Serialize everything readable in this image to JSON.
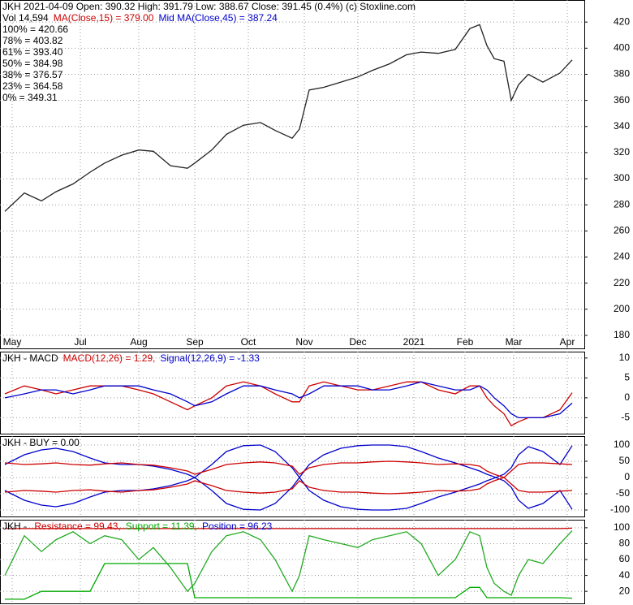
{
  "chart_data": [
    {
      "type": "line",
      "title": "JKH  2021-04-09 Open: 390.32 High: 391.79 Low: 388.67 Close: 391.45 (0.4%) (c) Stoxline.com",
      "annotations": [
        {
          "text": "Vol 14,594",
          "color": "#000000"
        },
        {
          "text": "MA(Close,15) = 379.00",
          "color": "#cc0000"
        },
        {
          "text": "Mid MA(Close,45) = 387.24",
          "color": "#0000cc"
        },
        {
          "text": "100% = 420.66",
          "color": "#cc0000"
        },
        {
          "text": "78% = 403.82",
          "color": "#cc00cc"
        },
        {
          "text": "61% = 393.40",
          "color": "#888888"
        },
        {
          "text": "50% = 384.98",
          "color": "#0000cc"
        },
        {
          "text": "38% = 376.57",
          "color": "#888888"
        },
        {
          "text": "23% = 364.58",
          "color": "#cc00cc"
        },
        {
          "text": "0% = 349.31",
          "color": "#008800"
        }
      ],
      "x": [
        2,
        10,
        17,
        23,
        30,
        37,
        43,
        50,
        57,
        63,
        70,
        77,
        80,
        87,
        93,
        100,
        107,
        113,
        120,
        123,
        127,
        133,
        140,
        147,
        153,
        160,
        167,
        173,
        180,
        187,
        193,
        197,
        200,
        203,
        207,
        210,
        213,
        217,
        223,
        230,
        235
      ],
      "xlim": [
        0,
        240
      ],
      "xticks": [
        {
          "value": 5,
          "label": "May"
        },
        {
          "value": 33,
          "label": "Jul"
        },
        {
          "value": 57,
          "label": "Aug"
        },
        {
          "value": 80,
          "label": "Sep"
        },
        {
          "value": 102,
          "label": "Oct"
        },
        {
          "value": 125,
          "label": "Nov"
        },
        {
          "value": 147,
          "label": "Dec"
        },
        {
          "value": 170,
          "label": "2021"
        },
        {
          "value": 191,
          "label": "Feb"
        },
        {
          "value": 211,
          "label": "Mar"
        },
        {
          "value": 233,
          "label": "Apr"
        }
      ],
      "ylim": [
        169.4,
        436.9
      ],
      "yticks": [
        420,
        400,
        380,
        360,
        340,
        320,
        300,
        280,
        260,
        240,
        220,
        200,
        180
      ],
      "grid": true,
      "series": [
        {
          "color": "#222222",
          "values": [
            275,
            289,
            283,
            290,
            296,
            305,
            312,
            318,
            322,
            321,
            310,
            308,
            312,
            322,
            334,
            341,
            343,
            337,
            331,
            338,
            368,
            370,
            374,
            378,
            383,
            388,
            395,
            397,
            396,
            399,
            415,
            418,
            402,
            392,
            390,
            360,
            372,
            380,
            374,
            381,
            391
          ]
        }
      ]
    },
    {
      "type": "line",
      "title": "JKH - MACD",
      "annotations": [
        {
          "text": "MACD(12,26) = 1.29,",
          "color": "#cc0000"
        },
        {
          "text": "Signal(12,26,9) = -1.33",
          "color": "#0000cc"
        }
      ],
      "ylim": [
        -9.2,
        11.6
      ],
      "yticks": [
        10,
        5,
        0,
        -5
      ],
      "grid": true,
      "series": [
        {
          "color": "#cc0000",
          "values": [
            1,
            3,
            2,
            1,
            2,
            3,
            3,
            3,
            2,
            1,
            -1,
            -3,
            -2,
            0,
            3,
            4,
            3,
            1,
            -1,
            -1,
            3,
            4,
            3,
            2,
            2,
            3,
            4,
            4,
            2,
            1,
            3,
            3,
            0,
            -2,
            -4,
            -7,
            -6,
            -5,
            -5,
            -3,
            1.29
          ]
        },
        {
          "color": "#0000cc",
          "values": [
            0,
            1,
            2,
            2,
            1,
            2,
            3,
            3,
            3,
            2,
            1,
            -1,
            -2,
            -1,
            1,
            3,
            3,
            2,
            1,
            0,
            1,
            3,
            3,
            3,
            2,
            2,
            3,
            4,
            3,
            2,
            2,
            3,
            2,
            0,
            -2,
            -4,
            -5,
            -5,
            -5,
            -4,
            -1.33
          ]
        }
      ]
    },
    {
      "type": "line",
      "title": "JKH - BUY = 0.00",
      "annotations": [],
      "ylim": [
        -122.5,
        127.5
      ],
      "yticks": [
        100,
        50,
        0,
        -50,
        -100
      ],
      "grid": true,
      "series": [
        {
          "color": "#0000cc",
          "values": [
            40,
            70,
            85,
            90,
            80,
            60,
            45,
            40,
            40,
            35,
            25,
            10,
            0,
            40,
            80,
            98,
            100,
            80,
            30,
            0,
            40,
            70,
            90,
            98,
            100,
            100,
            95,
            80,
            60,
            45,
            30,
            20,
            10,
            2,
            -10,
            -30,
            -70,
            -95,
            -80,
            -40,
            -98
          ]
        },
        {
          "color": "#0000cc",
          "values": [
            -40,
            -70,
            -85,
            -90,
            -80,
            -60,
            -45,
            -40,
            -40,
            -35,
            -25,
            -10,
            0,
            -40,
            -80,
            -98,
            -100,
            -80,
            -30,
            0,
            -40,
            -70,
            -90,
            -98,
            -100,
            -100,
            -95,
            -80,
            -60,
            -45,
            -30,
            -20,
            -10,
            -2,
            10,
            30,
            70,
            95,
            80,
            40,
            98
          ]
        },
        {
          "color": "#cc0000",
          "values": [
            45,
            40,
            42,
            45,
            40,
            38,
            42,
            45,
            40,
            38,
            30,
            20,
            10,
            25,
            40,
            45,
            48,
            45,
            35,
            10,
            30,
            40,
            45,
            45,
            48,
            50,
            48,
            45,
            40,
            42,
            40,
            35,
            20,
            10,
            0,
            20,
            40,
            45,
            45,
            42,
            40
          ]
        },
        {
          "color": "#cc0000",
          "values": [
            -45,
            -40,
            -42,
            -45,
            -40,
            -38,
            -42,
            -45,
            -40,
            -38,
            -30,
            -20,
            -10,
            -25,
            -40,
            -45,
            -48,
            -45,
            -35,
            -10,
            -30,
            -40,
            -45,
            -45,
            -48,
            -50,
            -48,
            -45,
            -40,
            -42,
            -40,
            -35,
            -20,
            -10,
            0,
            -20,
            -40,
            -45,
            -45,
            -42,
            -40
          ]
        }
      ]
    },
    {
      "type": "line",
      "title": "JKH - ",
      "annotations": [
        {
          "text": "Resistance = 99.43,",
          "color": "#cc0000"
        },
        {
          "text": "Support = 11.39,",
          "color": "#00aa00"
        },
        {
          "text": "Position = 96.23",
          "color": "#0000cc"
        }
      ],
      "ylim": [
        3.8,
        110.1
      ],
      "yticks": [
        100,
        80,
        60,
        40,
        20
      ],
      "grid": true,
      "series": [
        {
          "color": "#cc0000",
          "values": [
            99,
            99,
            99,
            99,
            99,
            99,
            99,
            99,
            99,
            99,
            99,
            99,
            99,
            99,
            99,
            99,
            99,
            99,
            99,
            99,
            99,
            99,
            99,
            99,
            99,
            99,
            99,
            99,
            99,
            99,
            99,
            99,
            99,
            99,
            99,
            99,
            99,
            99,
            99,
            99,
            99.43
          ]
        },
        {
          "color": "#00aa00",
          "values": [
            10,
            10,
            20,
            20,
            20,
            20,
            55,
            55,
            55,
            55,
            55,
            55,
            12,
            12,
            12,
            12,
            12,
            12,
            12,
            12,
            12,
            12,
            12,
            12,
            12,
            12,
            12,
            12,
            12,
            12,
            25,
            25,
            12,
            12,
            12,
            12,
            12,
            12,
            12,
            12,
            11.39
          ]
        },
        {
          "color": "#22aa22",
          "values": [
            40,
            90,
            70,
            85,
            95,
            80,
            90,
            85,
            60,
            75,
            50,
            20,
            30,
            70,
            90,
            95,
            85,
            60,
            20,
            40,
            90,
            85,
            80,
            75,
            85,
            90,
            95,
            80,
            40,
            60,
            95,
            90,
            50,
            30,
            20,
            15,
            40,
            60,
            55,
            80,
            96.23
          ]
        }
      ]
    }
  ]
}
